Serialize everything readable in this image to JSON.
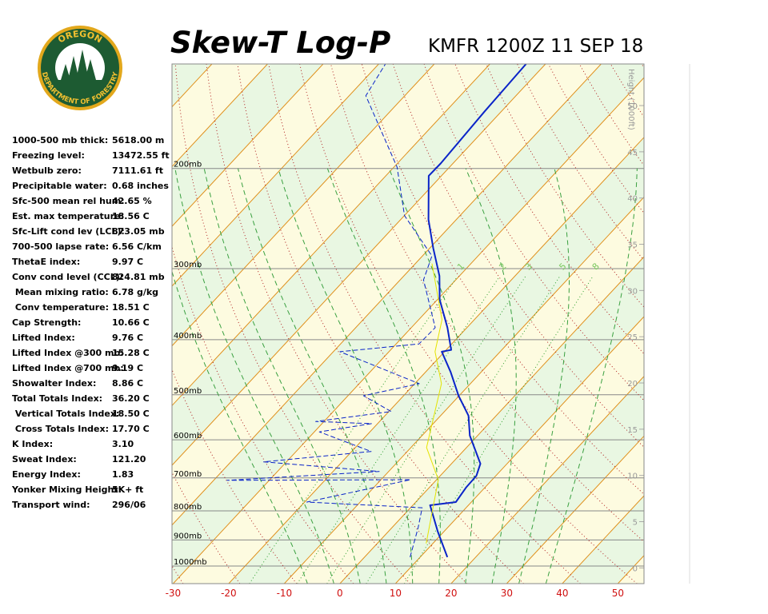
{
  "header": {
    "title": "Skew-T Log-P",
    "subtitle": "KMFR 1200Z 11 SEP 18"
  },
  "logo": {
    "top": "OREGON",
    "bottom": "DEPARTMENT OF FORESTRY"
  },
  "stats": {
    "rows": [
      [
        "1000-500 mb thick:",
        "5618.00 m"
      ],
      [
        "Freezing level:",
        "13472.55 ft"
      ],
      [
        "Wetbulb zero:",
        "7111.61 ft"
      ],
      [
        "Precipitable water:",
        "0.68 inches"
      ],
      [
        "Sfc-500 mean rel hum:",
        "42.65 %"
      ],
      [
        "Est. max temperature:",
        "18.56 C"
      ],
      [
        "Sfc-Lift cond lev (LCL):",
        "873.05 mb"
      ],
      [
        "700-500 lapse rate:",
        "6.56 C/km"
      ],
      [
        "ThetaE index:",
        "9.97 C"
      ],
      [
        "Conv cond level (CCL):",
        "824.81 mb"
      ],
      [
        " Mean mixing ratio:",
        "6.78 g/kg"
      ],
      [
        " Conv temperature:",
        "18.51 C"
      ],
      [
        "Cap Strength:",
        "10.66 C"
      ],
      [
        "Lifted Index:",
        "9.76 C"
      ],
      [
        "Lifted Index @300 mb:",
        "15.28 C"
      ],
      [
        "Lifted Index @700 mb:",
        "9.19 C"
      ],
      [
        "Showalter Index:",
        "8.86 C"
      ],
      [
        "Total Totals Index:",
        "36.20 C"
      ],
      [
        " Vertical Totals Index:",
        "18.50 C"
      ],
      [
        " Cross Totals Index:",
        "17.70 C"
      ],
      [
        "K Index:",
        "3.10"
      ],
      [
        "Sweat Index:",
        "121.20"
      ],
      [
        "Energy Index:",
        "1.83"
      ],
      [
        "Yonker Mixing Height:",
        "5K+ ft"
      ],
      [
        "Transport wind:",
        "296/06"
      ]
    ]
  },
  "chart_data": {
    "type": "skewt",
    "log_y": true,
    "xlim": [
      -30.2,
      54.7
    ],
    "xticks": [
      -30,
      -20,
      -10,
      0,
      10,
      20,
      30,
      40,
      50
    ],
    "ylim": [
      1074,
      131
    ],
    "yticks": [
      {
        "value": 200,
        "label": "200mb"
      },
      {
        "value": 300,
        "label": "300mb"
      },
      {
        "value": 400,
        "label": "400mb"
      },
      {
        "value": 500,
        "label": "500mb"
      },
      {
        "value": 600,
        "label": "600mb"
      },
      {
        "value": 700,
        "label": "700mb"
      },
      {
        "value": 800,
        "label": "800mb"
      },
      {
        "value": 900,
        "label": "900mb"
      },
      {
        "value": 1000,
        "label": "1000mb"
      }
    ],
    "y2label": "Height (1000ft)",
    "y2lim": [
      -1.7,
      54.5
    ],
    "y2ticks": [
      0,
      5,
      10,
      15,
      20,
      25,
      30,
      35,
      40,
      45,
      50
    ],
    "mixing_ratio_lines": [
      1,
      2,
      3,
      5,
      8
    ],
    "series": [
      {
        "color": "#0a24c8",
        "dashed": false,
        "width": 2,
        "pressure": [
          965,
          870,
          782,
          772,
          728,
          694,
          661,
          590,
          544,
          502,
          456,
          420,
          417,
          381,
          340,
          309,
          276,
          246,
          206,
          196,
          159,
          131
        ],
        "values": [
          14.9,
          8.9,
          3.1,
          7.2,
          6.6,
          6.5,
          5.2,
          -1.4,
          -5.0,
          -10.1,
          -15.5,
          -20.5,
          -19.1,
          -23.5,
          -29.6,
          -33.6,
          -39.4,
          -45.0,
          -52.3,
          -52.2,
          -53.0,
          -53.5
        ]
      },
      {
        "color": "#0a24c8",
        "dashed": true,
        "width": 1,
        "pressure": [
          965,
          856,
          790,
          772,
          705,
          707,
          682,
          656,
          629,
          581,
          562,
          557,
          535,
          502,
          478,
          420,
          407,
          381,
          314,
          285,
          242,
          199,
          149,
          131
        ],
        "values": [
          8.2,
          4.7,
          2.1,
          -19.6,
          -4.7,
          -37.6,
          -11.7,
          -34.1,
          -16.5,
          -29.1,
          -21.1,
          -31.5,
          -19.6,
          -27.2,
          -19.2,
          -38.8,
          -25.9,
          -25.7,
          -35.8,
          -38.3,
          -50.0,
          -59.4,
          -77.0,
          -78.8
        ]
      },
      {
        "color": "#e4e400",
        "dashed": false,
        "width": 1,
        "pressure": [
          913,
          705,
          619,
          478,
          420,
          369,
          294
        ],
        "values": [
          8.8,
          0.3,
          -7.2,
          -15.2,
          -21.7,
          -25.8,
          -37.0
        ]
      }
    ]
  }
}
